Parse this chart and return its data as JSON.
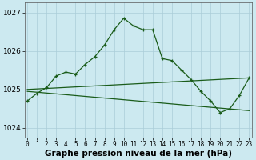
{
  "hours": [
    0,
    1,
    2,
    3,
    4,
    5,
    6,
    7,
    8,
    9,
    10,
    11,
    12,
    13,
    14,
    15,
    16,
    17,
    18,
    19,
    20,
    21,
    22,
    23
  ],
  "pressure": [
    1024.7,
    1024.9,
    1025.05,
    1025.35,
    1025.45,
    1025.4,
    1025.65,
    1025.85,
    1026.15,
    1026.55,
    1026.85,
    1026.65,
    1026.55,
    1026.55,
    1025.8,
    1025.75,
    1025.5,
    1025.25,
    1024.95,
    1024.7,
    1024.4,
    1024.5,
    1024.85,
    1025.3
  ],
  "line1_x": [
    0,
    23
  ],
  "line1_y": [
    1025.0,
    1025.3
  ],
  "line2_x": [
    0,
    23
  ],
  "line2_y": [
    1024.95,
    1024.45
  ],
  "line_color": "#1a5c1a",
  "bg_color": "#cce9f0",
  "grid_color": "#aacdd8",
  "ylabel_ticks": [
    1024,
    1025,
    1026,
    1027
  ],
  "xlabel_ticks": [
    0,
    1,
    2,
    3,
    4,
    5,
    6,
    7,
    8,
    9,
    10,
    11,
    12,
    13,
    14,
    15,
    16,
    17,
    18,
    19,
    20,
    21,
    22,
    23
  ],
  "ylim": [
    1023.75,
    1027.25
  ],
  "xlim": [
    -0.3,
    23.3
  ],
  "xlabel": "Graphe pression niveau de la mer (hPa)",
  "xlabel_fontsize": 7.5,
  "tick_fontsize": 6.5,
  "x_tick_fontsize": 5.5
}
